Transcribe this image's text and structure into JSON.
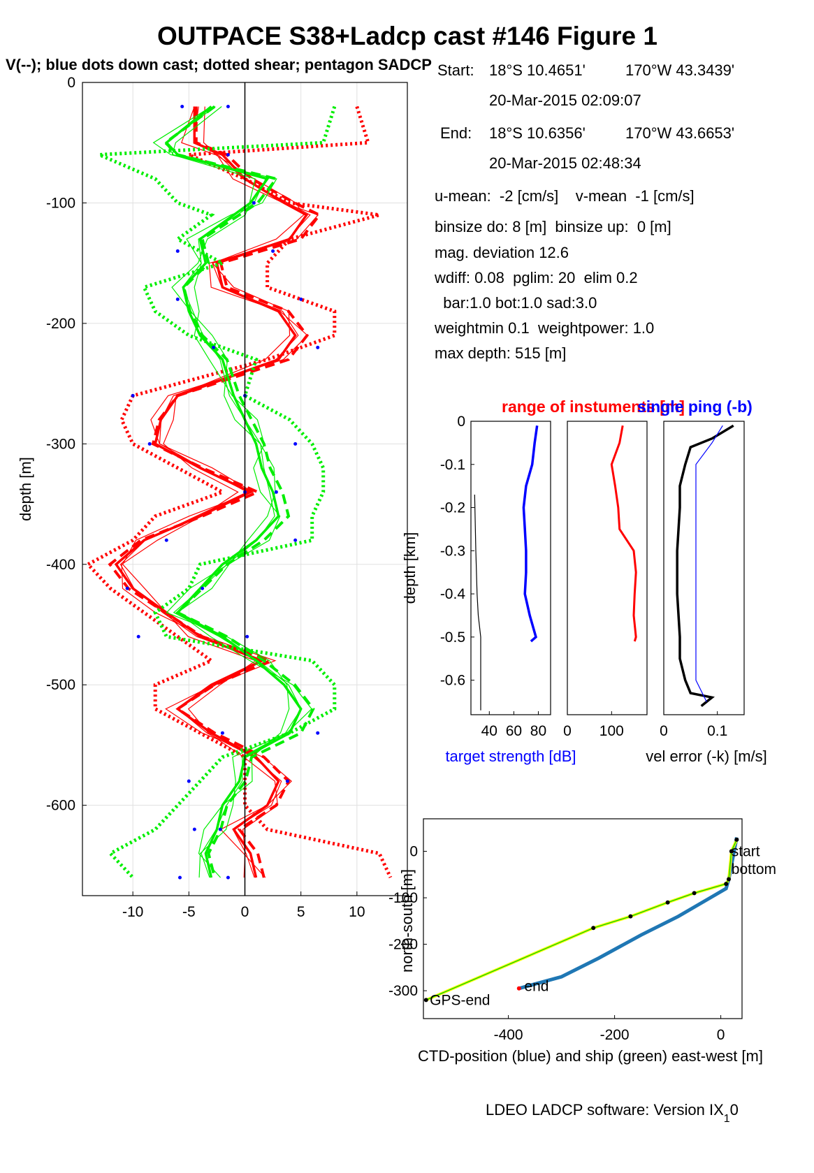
{
  "title": "OUTPACE S38+Ladcp cast #146  Figure 1",
  "subtitle": "V(--); blue dots down cast; dotted shear; pentagon SADCP",
  "info": {
    "start_label": "Start:",
    "start_lat": "18°S 10.4651'",
    "start_lon": "170°W 43.3439'",
    "start_time": "20-Mar-2015 02:09:07",
    "end_label": "End:",
    "end_lat": "18°S 10.6356'",
    "end_lon": "170°W 43.6653'",
    "end_time": "20-Mar-2015 02:48:34",
    "means": "u-mean:  -2 [cm/s]    v-mean  -1 [cm/s]",
    "binsize": "binsize do: 8 [m]  binsize up:  0 [m]",
    "magdev": "mag. deviation 12.6",
    "wdiff": "wdiff: 0.08  pglim: 20  elim 0.2",
    "bar": "  bar:1.0 bot:1.0 sad:3.0",
    "weight": "weightmin 0.1  weightpower: 1.0",
    "maxdepth": "max depth: 515 [m]"
  },
  "footer": "LDEO LADCP software: Version IX",
  "footer_sub": "1",
  "footer_end": "0",
  "colors": {
    "u": "#ff0000",
    "v": "#00ee00",
    "dots": "#0000ff",
    "track_ctd": "#1f77b4",
    "track_ship": "#00cc00",
    "yellow": "#ffff00"
  },
  "chart_data": [
    {
      "id": "profile",
      "type": "line",
      "ylabel": "depth [m]",
      "xlim": [
        -14.5,
        14.5
      ],
      "ylim": [
        -675,
        0
      ],
      "xticks": [
        -10,
        -5,
        0,
        5,
        10
      ],
      "yticks": [
        0,
        -100,
        -200,
        -300,
        -400,
        -500,
        -600
      ],
      "grid": true,
      "depth": [
        -20,
        -50,
        -60,
        -80,
        -100,
        -110,
        -130,
        -150,
        -170,
        -190,
        -210,
        -230,
        -260,
        -280,
        -300,
        -320,
        -340,
        -360,
        -380,
        -400,
        -420,
        -440,
        -460,
        -480,
        -500,
        -520,
        -540,
        -560,
        -580,
        -600,
        -620,
        -640,
        -660
      ],
      "series": [
        {
          "name": "u",
          "values": [
            -4.5,
            -4.5,
            -2,
            0,
            3.5,
            5.5,
            4,
            -2.5,
            -2,
            3,
            4.5,
            3,
            -6,
            -7.5,
            -8,
            -4,
            0.5,
            -4,
            -9,
            -11.5,
            -10,
            -7,
            -4,
            1.5,
            -3,
            -6,
            -3,
            1,
            3,
            2,
            -1,
            0.5,
            1
          ],
          "shear": [
            [
              -20,
              -50,
              -60,
              -80,
              -100,
              -110,
              -130,
              -150,
              -170,
              -190,
              -210,
              -230,
              -260,
              -280,
              -300,
              -320,
              -340,
              -360,
              -380,
              -400,
              -420,
              -440,
              -460,
              -480,
              -500,
              -520,
              -540,
              -560,
              -580,
              -600,
              -620,
              -640,
              -660
            ],
            [
              10,
              11,
              -5,
              0,
              4,
              12,
              4,
              2,
              2,
              8,
              8,
              2,
              -10,
              -11,
              -10,
              -6,
              -2,
              -8,
              -10,
              -14,
              -12,
              -9,
              -6,
              -3,
              -8,
              -8,
              -4,
              0,
              0,
              0,
              2,
              12,
              13
            ]
          ]
        },
        {
          "name": "v",
          "values": [
            -3,
            -7,
            -6,
            2,
            0.5,
            -1,
            -4,
            -3.5,
            -5.5,
            -5,
            -4,
            -2,
            -1,
            0,
            1,
            1.5,
            2.5,
            3,
            1,
            -2,
            -4,
            -6,
            -2,
            1,
            3.5,
            5,
            4,
            0,
            -0.5,
            -2,
            -2.5,
            -3.5,
            -3
          ],
          "shear": [
            [
              -20,
              -50,
              -60,
              -80,
              -100,
              -110,
              -130,
              -150,
              -170,
              -190,
              -210,
              -230,
              -260,
              -280,
              -300,
              -320,
              -340,
              -360,
              -380,
              -400,
              -420,
              -440,
              -460,
              -480,
              -500,
              -520,
              -540,
              -560,
              -580,
              -600,
              -620,
              -640,
              -660
            ],
            [
              8,
              7,
              -13,
              -8,
              -6,
              -3,
              -6,
              -2,
              -9,
              -8,
              -5,
              1,
              0,
              4,
              6,
              7,
              7,
              6,
              6,
              -4,
              -5,
              -8,
              -7,
              6,
              8,
              8,
              4,
              -2,
              -4,
              -6,
              -8,
              -12,
              -10
            ]
          ]
        }
      ],
      "dots": [
        [
          -20,
          -5.6
        ],
        [
          -20,
          -1.5
        ],
        [
          -60,
          -1.5
        ],
        [
          -100,
          0.8
        ],
        [
          -140,
          -6
        ],
        [
          -140,
          2.5
        ],
        [
          -180,
          -6
        ],
        [
          -180,
          5
        ],
        [
          -220,
          -2.8
        ],
        [
          -220,
          6.5
        ],
        [
          -260,
          -10
        ],
        [
          -260,
          0
        ],
        [
          -300,
          -8.5
        ],
        [
          -300,
          4.5
        ],
        [
          -340,
          0
        ],
        [
          -340,
          2.8
        ],
        [
          -380,
          -7
        ],
        [
          -380,
          4.5
        ],
        [
          -420,
          -10.5
        ],
        [
          -420,
          -3.8
        ],
        [
          -460,
          -9.5
        ],
        [
          -460,
          0.2
        ],
        [
          -540,
          -2
        ],
        [
          -540,
          6.5
        ],
        [
          -580,
          -5
        ],
        [
          -580,
          3.8
        ],
        [
          -620,
          -4.5
        ],
        [
          -620,
          -2.2
        ],
        [
          -660,
          -5.8
        ],
        [
          -660,
          -1.5
        ]
      ]
    },
    {
      "id": "target_strength",
      "type": "line",
      "xlabel": "target strength [dB]",
      "ylabel": "depth [km]",
      "xlim": [
        25,
        90
      ],
      "ylim": [
        -0.68,
        0
      ],
      "xticks": [
        40,
        60,
        80
      ],
      "yticks": [
        0,
        -0.1,
        -0.2,
        -0.3,
        -0.4,
        -0.5,
        -0.6
      ],
      "series": [
        {
          "name": "ts",
          "depth": [
            -0.01,
            -0.05,
            -0.1,
            -0.15,
            -0.2,
            -0.25,
            -0.3,
            -0.35,
            -0.4,
            -0.45,
            -0.5,
            -0.51
          ],
          "values": [
            79,
            77,
            75,
            70,
            68,
            69,
            70,
            70,
            69,
            73,
            78,
            74
          ]
        },
        {
          "name": "black",
          "depth": [
            -0.17,
            -0.3,
            -0.4,
            -0.45,
            -0.5,
            -0.55,
            -0.6,
            -0.67
          ],
          "values": [
            28,
            29,
            30,
            31,
            33,
            33,
            33,
            33
          ]
        }
      ]
    },
    {
      "id": "range",
      "type": "line",
      "title": "range of instuments [m]",
      "xlim": [
        0,
        180
      ],
      "ylim": [
        -0.68,
        0
      ],
      "xticks": [
        0,
        100
      ],
      "series": [
        {
          "name": "range",
          "depth": [
            -0.01,
            -0.05,
            -0.1,
            -0.15,
            -0.2,
            -0.25,
            -0.3,
            -0.35,
            -0.4,
            -0.45,
            -0.5,
            -0.51
          ],
          "values": [
            125,
            118,
            100,
            108,
            115,
            118,
            150,
            155,
            152,
            150,
            155,
            152
          ]
        }
      ]
    },
    {
      "id": "vel_error",
      "type": "line",
      "title": "single ping (-b)",
      "xlabel": "vel error (-k) [m/s]",
      "xlim": [
        0,
        0.15
      ],
      "ylim": [
        -0.68,
        0
      ],
      "xticks": [
        0,
        0.1
      ],
      "series": [
        {
          "name": "black",
          "depth": [
            -0.01,
            -0.04,
            -0.06,
            -0.1,
            -0.15,
            -0.2,
            -0.3,
            -0.4,
            -0.5,
            -0.55,
            -0.6,
            -0.63,
            -0.64,
            -0.66
          ],
          "values": [
            0.13,
            0.09,
            0.05,
            0.04,
            0.03,
            0.03,
            0.025,
            0.025,
            0.03,
            0.03,
            0.04,
            0.05,
            0.09,
            0.07
          ]
        },
        {
          "name": "blue",
          "depth": [
            -0.01,
            -0.05,
            -0.1,
            -0.15,
            -0.2,
            -0.3,
            -0.4,
            -0.5,
            -0.6,
            -0.65
          ],
          "values": [
            0.11,
            0.09,
            0.06,
            0.06,
            0.06,
            0.06,
            0.06,
            0.06,
            0.06,
            0.08
          ]
        }
      ]
    },
    {
      "id": "track",
      "type": "line",
      "xlabel": "CTD-position (blue) and ship (green) east-west [m]",
      "ylabel": "north-south [m]",
      "xlim": [
        -560,
        40
      ],
      "ylim": [
        -360,
        70
      ],
      "xticks": [
        -400,
        -200,
        0
      ],
      "yticks": [
        0,
        -100,
        -200,
        -300
      ],
      "series": [
        {
          "name": "ctd",
          "x": [
            30,
            25,
            15,
            10,
            -20,
            -80,
            -150,
            -230,
            -300,
            -380
          ],
          "y": [
            30,
            0,
            -60,
            -80,
            -100,
            -140,
            -180,
            -230,
            -270,
            -295
          ]
        },
        {
          "name": "ship",
          "x": [
            30,
            20,
            15,
            10,
            -50,
            -100,
            -170,
            -240,
            -555
          ],
          "y": [
            25,
            0,
            -60,
            -70,
            -90,
            -110,
            -140,
            -165,
            -320
          ]
        }
      ],
      "labels": [
        "start",
        "bottom",
        "end",
        "GPS-end"
      ]
    }
  ]
}
